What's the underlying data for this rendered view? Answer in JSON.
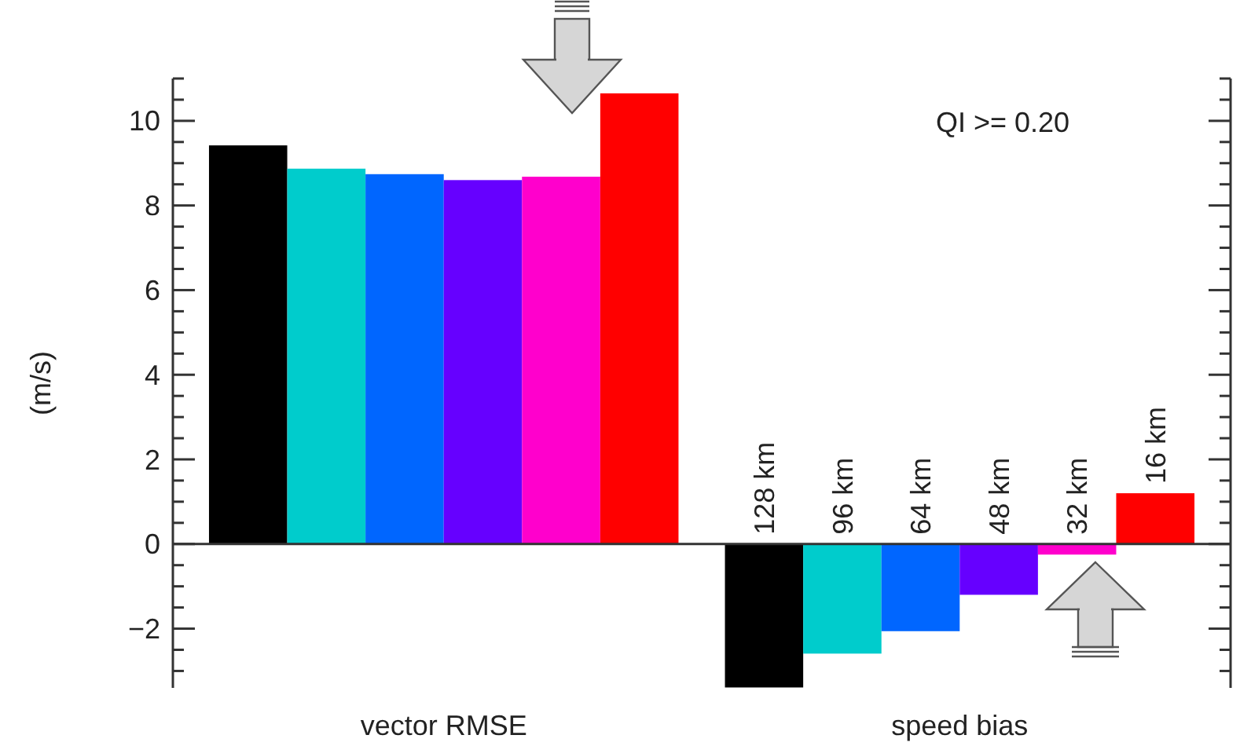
{
  "chart_data": {
    "type": "bar",
    "categories": [
      "vector RMSE",
      "speed bias"
    ],
    "ylabel": "(m/s)",
    "annotations": [
      "QI >= 0.20"
    ],
    "series": [
      {
        "name": "128 km",
        "color": "#000000",
        "values": [
          9.42,
          -3.39
        ]
      },
      {
        "name": "96 km",
        "color": "#00cccc",
        "values": [
          8.87,
          -2.59
        ]
      },
      {
        "name": "64 km",
        "color": "#0066ff",
        "values": [
          8.74,
          -2.06
        ]
      },
      {
        "name": "48 km",
        "color": "#6600ff",
        "values": [
          8.6,
          -1.2
        ]
      },
      {
        "name": "32 km",
        "color": "#ff00cc",
        "values": [
          8.68,
          -0.25
        ]
      },
      {
        "name": "16 km",
        "color": "#ff0000",
        "values": [
          10.65,
          1.2
        ]
      }
    ],
    "ylim": [
      -3.4,
      11
    ],
    "yticks": [
      {
        "value": -3,
        "label": null
      },
      {
        "value": -2.5,
        "label": null
      },
      {
        "value": -2,
        "label": "−2"
      },
      {
        "value": -1.5,
        "label": null
      },
      {
        "value": -1,
        "label": null
      },
      {
        "value": -0.5,
        "label": null
      },
      0,
      {
        "value": 0.5,
        "label": null
      },
      {
        "value": 1,
        "label": null
      },
      {
        "value": 1.5,
        "label": null
      },
      2,
      {
        "value": 2.5,
        "label": null
      },
      {
        "value": 3,
        "label": null
      },
      {
        "value": 3.5,
        "label": null
      },
      4,
      {
        "value": 4.5,
        "label": null
      },
      {
        "value": 5,
        "label": null
      },
      {
        "value": 5.5,
        "label": null
      },
      6,
      {
        "value": 6.5,
        "label": null
      },
      {
        "value": 7,
        "label": null
      },
      {
        "value": 7.5,
        "label": null
      },
      8,
      {
        "value": 8.5,
        "label": null
      },
      {
        "value": 9,
        "label": null
      },
      {
        "value": 9.5,
        "label": null
      },
      10,
      {
        "value": 10.5,
        "label": null
      },
      {
        "value": 11,
        "label": null
      }
    ],
    "tick_labels": "y"
  }
}
